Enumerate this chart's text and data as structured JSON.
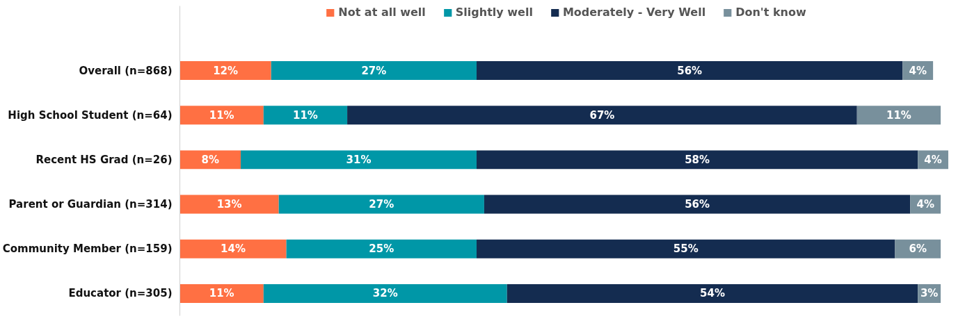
{
  "chart_data": {
    "type": "bar",
    "orientation": "horizontal",
    "stacked": true,
    "legend": "top",
    "grid": false,
    "categories": [
      "Overall (n=868)",
      "High School Student (n=64)",
      "Recent HS Grad (n=26)",
      "Parent or Guardian (n=314)",
      "Community Member (n=159)",
      "Educator (n=305)"
    ],
    "series": [
      {
        "name": "Not at all well",
        "color": "#ff7043",
        "values": [
          12,
          11,
          8,
          13,
          14,
          11
        ],
        "value_labels": [
          "12%",
          "11%",
          "8%",
          "13%",
          "14%",
          "11%"
        ]
      },
      {
        "name": "Slightly well",
        "color": "#0097a7",
        "values": [
          27,
          11,
          31,
          27,
          25,
          32
        ],
        "value_labels": [
          "27%",
          "11%",
          "31%",
          "27%",
          "25%",
          "32%"
        ]
      },
      {
        "name": "Moderately - Very Well",
        "color": "#142c50",
        "values": [
          56,
          67,
          58,
          56,
          55,
          54
        ],
        "value_labels": [
          "56%",
          "67%",
          "58%",
          "56%",
          "55%",
          "54%"
        ]
      },
      {
        "name": "Don't know",
        "color": "#78909c",
        "values": [
          4,
          11,
          4,
          4,
          6,
          3
        ],
        "value_labels": [
          "4%",
          "11%",
          "4%",
          "4%",
          "6%",
          "3%"
        ]
      }
    ]
  }
}
